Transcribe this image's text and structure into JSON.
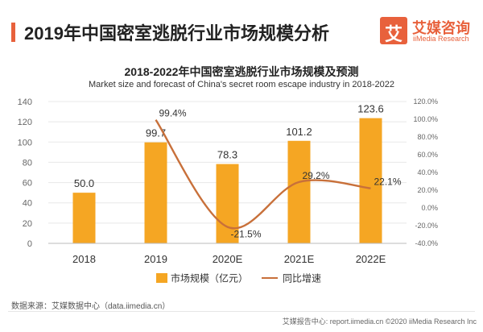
{
  "header": {
    "title": "2019年中国密室逃脱行业市场规模分析",
    "logo": {
      "glyph": "艾",
      "name_cn": "艾媒咨询",
      "name_en": "iiMedia Research"
    }
  },
  "chart_data": {
    "type": "bar",
    "title": "2018-2022年中国密室逃脱行业市场规模及预测",
    "subtitle": "Market size and forecast of China's secret room escape industry in 2018-2022",
    "categories": [
      "2018",
      "2019",
      "2020E",
      "2021E",
      "2022E"
    ],
    "series": [
      {
        "name": "市场规模（亿元）",
        "type": "bar",
        "axis": "left",
        "color": "#f5a623",
        "values": [
          50.0,
          99.7,
          78.3,
          101.2,
          123.6
        ],
        "labels": [
          "50.0",
          "99.7",
          "78.3",
          "101.2",
          "123.6"
        ]
      },
      {
        "name": "同比增速",
        "type": "line",
        "axis": "right",
        "color": "#c8703a",
        "smooth": true,
        "values": [
          null,
          99.4,
          -21.5,
          29.2,
          22.1
        ],
        "labels": [
          "",
          "99.4%",
          "-21.5%",
          "29.2%",
          "22.1%"
        ]
      }
    ],
    "y_left": {
      "ylim": [
        0,
        140
      ],
      "ticks": [
        "0",
        "20",
        "40",
        "60",
        "80",
        "100",
        "120",
        "140"
      ]
    },
    "y_right": {
      "ylim": [
        -40,
        120
      ],
      "ticks": [
        "-40.0%",
        "-20.0%",
        "0.0%",
        "20.0%",
        "40.0%",
        "60.0%",
        "80.0%",
        "100.0%",
        "120.0%"
      ]
    },
    "grid": true,
    "legend_position": "bottom"
  },
  "footer": {
    "source": "数据来源：艾媒数据中心（data.iimedia.cn）",
    "copyright": "艾媒报告中心: report.iimedia.cn ©2020  iiMedia Research  Inc"
  }
}
